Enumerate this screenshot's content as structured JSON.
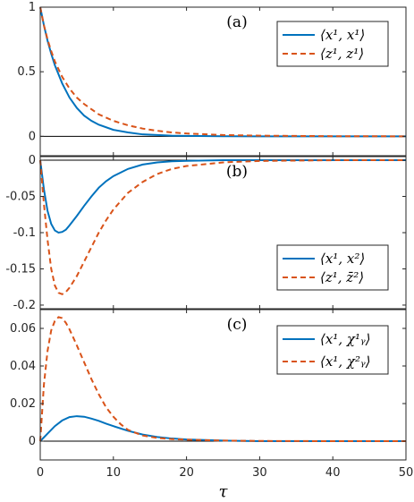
{
  "chart_data": [
    {
      "type": "line",
      "panel_label": "(a)",
      "xlim": [
        0,
        50
      ],
      "ylim": [
        -0.15,
        1
      ],
      "yticks": [
        "0",
        "0.5",
        "1"
      ],
      "yticks_values": [
        0,
        0.5,
        1
      ],
      "legend": {
        "position": "top-right",
        "entries": [
          "⟨x¹, x¹⟩",
          "⟨z¹, z¹⟩"
        ]
      },
      "series": [
        {
          "name": "⟨x¹, x¹⟩",
          "color": "#0072BD",
          "style": "solid",
          "x": [
            0,
            0.5,
            1,
            1.5,
            2,
            3,
            4,
            5,
            6,
            7,
            8,
            10,
            12,
            14,
            16,
            18,
            20,
            25,
            30,
            40,
            50
          ],
          "y": [
            1,
            0.86,
            0.74,
            0.64,
            0.55,
            0.41,
            0.3,
            0.22,
            0.16,
            0.12,
            0.09,
            0.05,
            0.03,
            0.015,
            0.01,
            0.005,
            0.003,
            0.001,
            0,
            0,
            0
          ]
        },
        {
          "name": "⟨z¹, z¹⟩",
          "color": "#D95319",
          "style": "dashed",
          "x": [
            0,
            0.5,
            1,
            1.5,
            2,
            3,
            4,
            5,
            6,
            7,
            8,
            10,
            12,
            14,
            16,
            18,
            20,
            25,
            30,
            40,
            50
          ],
          "y": [
            1,
            0.86,
            0.75,
            0.66,
            0.58,
            0.46,
            0.37,
            0.3,
            0.25,
            0.21,
            0.17,
            0.12,
            0.085,
            0.06,
            0.043,
            0.03,
            0.022,
            0.01,
            0.005,
            0.001,
            0
          ]
        }
      ]
    },
    {
      "type": "line",
      "panel_label": "(b)",
      "xlim": [
        0,
        50
      ],
      "ylim": [
        -0.205,
        0.005
      ],
      "yticks": [
        "0",
        "-0.05",
        "-0.1",
        "-0.15",
        "-0.2"
      ],
      "yticks_values": [
        0,
        -0.05,
        -0.1,
        -0.15,
        -0.2
      ],
      "legend": {
        "position": "bottom-right",
        "entries": [
          "⟨x¹, x²⟩",
          "⟨z¹, z̄²⟩"
        ]
      },
      "series": [
        {
          "name": "⟨x¹, x²⟩",
          "color": "#0072BD",
          "style": "solid",
          "x": [
            0,
            0.5,
            1,
            1.5,
            2,
            2.5,
            3,
            3.5,
            4,
            5,
            6,
            7,
            8,
            9,
            10,
            12,
            14,
            16,
            18,
            20,
            25,
            30,
            40,
            50
          ],
          "y": [
            0,
            -0.04,
            -0.07,
            -0.088,
            -0.097,
            -0.1,
            -0.099,
            -0.096,
            -0.09,
            -0.077,
            -0.063,
            -0.05,
            -0.038,
            -0.029,
            -0.022,
            -0.012,
            -0.006,
            -0.003,
            -0.0015,
            -0.0008,
            0,
            0,
            0,
            0
          ]
        },
        {
          "name": "⟨z¹, z̄²⟩",
          "color": "#D95319",
          "style": "dashed",
          "x": [
            0,
            0.5,
            1,
            1.5,
            2,
            2.5,
            3,
            3.5,
            4,
            5,
            6,
            7,
            8,
            9,
            10,
            12,
            14,
            16,
            18,
            20,
            25,
            30,
            40,
            50
          ],
          "y": [
            0,
            -0.06,
            -0.11,
            -0.15,
            -0.173,
            -0.183,
            -0.185,
            -0.182,
            -0.176,
            -0.16,
            -0.14,
            -0.12,
            -0.1,
            -0.083,
            -0.068,
            -0.045,
            -0.03,
            -0.019,
            -0.012,
            -0.008,
            -0.003,
            -0.001,
            0,
            0
          ]
        }
      ]
    },
    {
      "type": "line",
      "panel_label": "(c)",
      "xlim": [
        0,
        50
      ],
      "ylim": [
        -0.01,
        0.07
      ],
      "yticks": [
        "0",
        "0.02",
        "0.04",
        "0.06"
      ],
      "yticks_values": [
        0,
        0.02,
        0.04,
        0.06
      ],
      "xticks": [
        "0",
        "10",
        "20",
        "30",
        "40",
        "50"
      ],
      "xticks_values": [
        0,
        10,
        20,
        30,
        40,
        50
      ],
      "xlabel": "τ",
      "legend": {
        "position": "top-right",
        "entries": [
          "⟨x¹, χ¹ᵧ⟩",
          "⟨x¹, χ²ᵧ⟩"
        ]
      },
      "series": [
        {
          "name": "⟨x¹, χ¹ᵧ⟩",
          "color": "#0072BD",
          "style": "solid",
          "x": [
            0,
            1,
            2,
            3,
            4,
            5,
            6,
            7,
            8,
            9,
            10,
            12,
            14,
            16,
            18,
            20,
            25,
            30,
            40,
            50
          ],
          "y": [
            0,
            0.004,
            0.008,
            0.011,
            0.0128,
            0.0133,
            0.013,
            0.012,
            0.0108,
            0.0093,
            0.008,
            0.0055,
            0.0035,
            0.0022,
            0.0014,
            0.0009,
            0.0003,
            0,
            0,
            0
          ]
        },
        {
          "name": "⟨x¹, χ²ᵧ⟩",
          "color": "#D95319",
          "style": "dashed",
          "x": [
            0,
            0.5,
            1,
            1.5,
            2,
            2.5,
            3,
            3.5,
            4,
            5,
            6,
            7,
            8,
            9,
            10,
            11,
            12,
            14,
            16,
            18,
            20,
            25,
            30,
            40,
            50
          ],
          "y": [
            0,
            0.03,
            0.048,
            0.059,
            0.064,
            0.066,
            0.0655,
            0.063,
            0.0595,
            0.051,
            0.042,
            0.033,
            0.025,
            0.018,
            0.013,
            0.009,
            0.006,
            0.003,
            0.0017,
            0.0011,
            0.0008,
            0.0003,
            0.0001,
            0,
            0
          ]
        }
      ]
    }
  ]
}
